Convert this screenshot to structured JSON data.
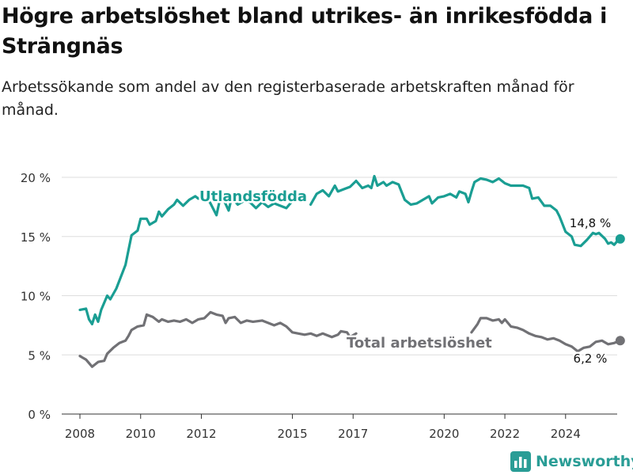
{
  "title": "Högre arbetslöshet bland utrikes- än inrikesfödda i Strängnäs",
  "subtitle": "Arbetssökande som andel av den registerbaserade arbetskraften månad för månad.",
  "brand": {
    "name": "Newsworthy",
    "icon": "bar-chart-logo-icon",
    "color": "#2a9d96"
  },
  "chart_data": {
    "type": "line",
    "xlabel": "",
    "ylabel": "",
    "ylim": [
      0,
      20
    ],
    "y_ticks": [
      0,
      5,
      10,
      15,
      20
    ],
    "y_tick_labels": [
      "0 %",
      "5 %",
      "10 %",
      "15 %",
      "20 %"
    ],
    "x_ticks": [
      2008,
      2010,
      2012,
      2015,
      2017,
      2020,
      2022,
      2024
    ],
    "x_tick_labels": [
      "2008",
      "2010",
      "2012",
      "2015",
      "2017",
      "2020",
      "2022",
      "2024"
    ],
    "xlim": [
      2007.4,
      2025.7
    ],
    "grid": true,
    "series": [
      {
        "name": "Utlandsfödda",
        "color": "#1a9e93",
        "end_label": "14,8 %",
        "segments": [
          [
            [
              2008.0,
              8.8
            ],
            [
              2008.2,
              8.9
            ],
            [
              2008.3,
              8.0
            ],
            [
              2008.4,
              7.6
            ],
            [
              2008.5,
              8.4
            ],
            [
              2008.6,
              7.8
            ],
            [
              2008.7,
              8.8
            ],
            [
              2008.9,
              10.0
            ],
            [
              2009.0,
              9.7
            ],
            [
              2009.2,
              10.6
            ],
            [
              2009.5,
              12.6
            ],
            [
              2009.7,
              15.1
            ],
            [
              2009.9,
              15.5
            ],
            [
              2010.0,
              16.5
            ],
            [
              2010.2,
              16.5
            ],
            [
              2010.3,
              16.0
            ],
            [
              2010.5,
              16.3
            ],
            [
              2010.6,
              17.1
            ],
            [
              2010.7,
              16.7
            ],
            [
              2010.9,
              17.3
            ],
            [
              2011.1,
              17.7
            ],
            [
              2011.2,
              18.1
            ],
            [
              2011.4,
              17.6
            ],
            [
              2011.6,
              18.1
            ],
            [
              2011.8,
              18.4
            ],
            [
              2011.9,
              18.2
            ],
            [
              2012.1,
              18.6
            ],
            [
              2012.3,
              17.8
            ],
            [
              2012.5,
              16.8
            ],
            [
              2012.6,
              18.0
            ],
            [
              2012.7,
              18.3
            ],
            [
              2012.9,
              17.2
            ],
            [
              2013.0,
              18.3
            ],
            [
              2013.2,
              17.7
            ],
            [
              2013.4,
              18.0
            ],
            [
              2013.6,
              17.9
            ],
            [
              2013.8,
              17.4
            ],
            [
              2014.0,
              17.9
            ],
            [
              2014.2,
              17.5
            ],
            [
              2014.4,
              17.8
            ],
            [
              2014.6,
              17.6
            ],
            [
              2014.8,
              17.4
            ],
            [
              2015.0,
              18.0
            ]
          ],
          [
            [
              2015.6,
              17.7
            ],
            [
              2015.8,
              18.6
            ],
            [
              2016.0,
              18.9
            ],
            [
              2016.2,
              18.4
            ],
            [
              2016.4,
              19.3
            ],
            [
              2016.5,
              18.8
            ],
            [
              2016.7,
              19.0
            ],
            [
              2016.9,
              19.2
            ],
            [
              2017.1,
              19.7
            ],
            [
              2017.3,
              19.1
            ],
            [
              2017.5,
              19.3
            ],
            [
              2017.6,
              19.1
            ],
            [
              2017.7,
              20.1
            ],
            [
              2017.8,
              19.3
            ],
            [
              2018.0,
              19.6
            ],
            [
              2018.1,
              19.3
            ],
            [
              2018.3,
              19.6
            ],
            [
              2018.5,
              19.4
            ],
            [
              2018.7,
              18.1
            ],
            [
              2018.9,
              17.7
            ],
            [
              2019.1,
              17.8
            ],
            [
              2019.3,
              18.1
            ],
            [
              2019.5,
              18.4
            ],
            [
              2019.6,
              17.8
            ],
            [
              2019.8,
              18.3
            ],
            [
              2020.0,
              18.4
            ],
            [
              2020.2,
              18.6
            ],
            [
              2020.4,
              18.3
            ],
            [
              2020.5,
              18.8
            ],
            [
              2020.7,
              18.6
            ],
            [
              2020.8,
              17.9
            ],
            [
              2020.9,
              18.8
            ],
            [
              2021.0,
              19.6
            ],
            [
              2021.2,
              19.9
            ],
            [
              2021.4,
              19.8
            ],
            [
              2021.6,
              19.6
            ],
            [
              2021.8,
              19.9
            ],
            [
              2022.0,
              19.5
            ],
            [
              2022.2,
              19.3
            ],
            [
              2022.4,
              19.3
            ],
            [
              2022.6,
              19.3
            ],
            [
              2022.8,
              19.1
            ],
            [
              2022.9,
              18.2
            ],
            [
              2023.1,
              18.3
            ],
            [
              2023.3,
              17.6
            ],
            [
              2023.5,
              17.6
            ],
            [
              2023.7,
              17.2
            ],
            [
              2023.8,
              16.7
            ],
            [
              2024.0,
              15.4
            ],
            [
              2024.2,
              15.0
            ],
            [
              2024.3,
              14.3
            ],
            [
              2024.5,
              14.2
            ],
            [
              2024.7,
              14.7
            ],
            [
              2024.9,
              15.3
            ],
            [
              2025.0,
              15.2
            ],
            [
              2025.1,
              15.3
            ],
            [
              2025.3,
              14.8
            ],
            [
              2025.4,
              14.4
            ],
            [
              2025.5,
              14.5
            ],
            [
              2025.6,
              14.3
            ],
            [
              2025.7,
              14.6
            ],
            [
              2025.8,
              14.8
            ]
          ]
        ]
      },
      {
        "name": "Total arbetslöshet",
        "color": "#717175",
        "end_label": "6,2 %",
        "segments": [
          [
            [
              2008.0,
              4.9
            ],
            [
              2008.2,
              4.6
            ],
            [
              2008.4,
              4.0
            ],
            [
              2008.6,
              4.4
            ],
            [
              2008.8,
              4.5
            ],
            [
              2008.9,
              5.1
            ],
            [
              2009.1,
              5.6
            ],
            [
              2009.3,
              6.0
            ],
            [
              2009.5,
              6.2
            ],
            [
              2009.6,
              6.6
            ],
            [
              2009.7,
              7.1
            ],
            [
              2009.9,
              7.4
            ],
            [
              2010.1,
              7.5
            ],
            [
              2010.2,
              8.4
            ],
            [
              2010.4,
              8.2
            ],
            [
              2010.6,
              7.8
            ],
            [
              2010.7,
              8.0
            ],
            [
              2010.9,
              7.8
            ],
            [
              2011.1,
              7.9
            ],
            [
              2011.3,
              7.8
            ],
            [
              2011.5,
              8.0
            ],
            [
              2011.7,
              7.7
            ],
            [
              2011.9,
              8.0
            ],
            [
              2012.1,
              8.1
            ],
            [
              2012.3,
              8.6
            ],
            [
              2012.5,
              8.4
            ],
            [
              2012.7,
              8.3
            ],
            [
              2012.8,
              7.7
            ],
            [
              2012.9,
              8.1
            ],
            [
              2013.1,
              8.2
            ],
            [
              2013.3,
              7.7
            ],
            [
              2013.5,
              7.9
            ],
            [
              2013.7,
              7.8
            ],
            [
              2014.0,
              7.9
            ],
            [
              2014.2,
              7.7
            ],
            [
              2014.4,
              7.5
            ],
            [
              2014.6,
              7.7
            ],
            [
              2014.8,
              7.4
            ],
            [
              2015.0,
              6.9
            ],
            [
              2015.2,
              6.8
            ],
            [
              2015.4,
              6.7
            ],
            [
              2015.6,
              6.8
            ],
            [
              2015.8,
              6.6
            ],
            [
              2016.0,
              6.8
            ],
            [
              2016.1,
              6.7
            ],
            [
              2016.3,
              6.5
            ],
            [
              2016.5,
              6.7
            ],
            [
              2016.6,
              7.0
            ],
            [
              2016.8,
              6.9
            ],
            [
              2016.9,
              6.5
            ],
            [
              2017.1,
              6.8
            ]
          ],
          [
            [
              2020.9,
              6.9
            ],
            [
              2021.1,
              7.6
            ],
            [
              2021.2,
              8.1
            ],
            [
              2021.4,
              8.1
            ],
            [
              2021.6,
              7.9
            ],
            [
              2021.8,
              8.0
            ],
            [
              2021.9,
              7.7
            ],
            [
              2022.0,
              8.0
            ],
            [
              2022.2,
              7.4
            ],
            [
              2022.4,
              7.3
            ],
            [
              2022.6,
              7.1
            ],
            [
              2022.8,
              6.8
            ],
            [
              2023.0,
              6.6
            ],
            [
              2023.2,
              6.5
            ],
            [
              2023.4,
              6.3
            ],
            [
              2023.6,
              6.4
            ],
            [
              2023.8,
              6.2
            ],
            [
              2024.0,
              5.9
            ],
            [
              2024.2,
              5.7
            ],
            [
              2024.4,
              5.3
            ],
            [
              2024.6,
              5.6
            ],
            [
              2024.8,
              5.7
            ],
            [
              2025.0,
              6.1
            ],
            [
              2025.2,
              6.2
            ],
            [
              2025.4,
              5.9
            ],
            [
              2025.6,
              6.0
            ],
            [
              2025.8,
              6.2
            ]
          ]
        ]
      }
    ]
  }
}
